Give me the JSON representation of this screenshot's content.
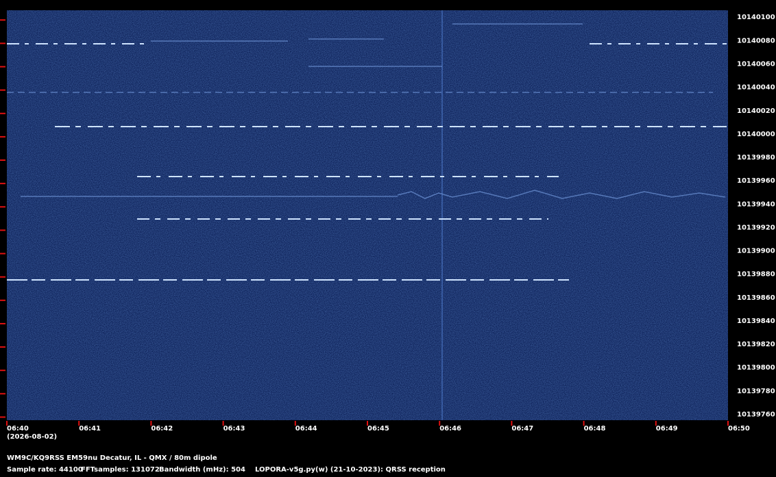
{
  "chart_data": {
    "type": "spectrogram",
    "x_labels": [
      "06:40",
      "06:41",
      "06:42",
      "06:43",
      "06:44",
      "06:45",
      "06:46",
      "06:47",
      "06:48",
      "06:49",
      "06:50"
    ],
    "date": "(2026-08-02)",
    "ylim": [
      10139755,
      10140106
    ],
    "yticks": [
      10140100,
      10140080,
      10140060,
      10140040,
      10140020,
      10140000,
      10139980,
      10139960,
      10139940,
      10139920,
      10139900,
      10139880,
      10139860,
      10139840,
      10139820,
      10139800,
      10139780,
      10139760
    ],
    "tick_color": "#e01010",
    "station": "WM9C/KQ9RSS EM59nu Decatur, IL - QMX / 80m dipole",
    "info": [
      "Sample rate: 44100",
      "FFTsamples: 131072",
      "Bandwidth (mHz): 504",
      "LOPORA-v5g.py(w) (21-10-2023): QRSS reception"
    ]
  }
}
